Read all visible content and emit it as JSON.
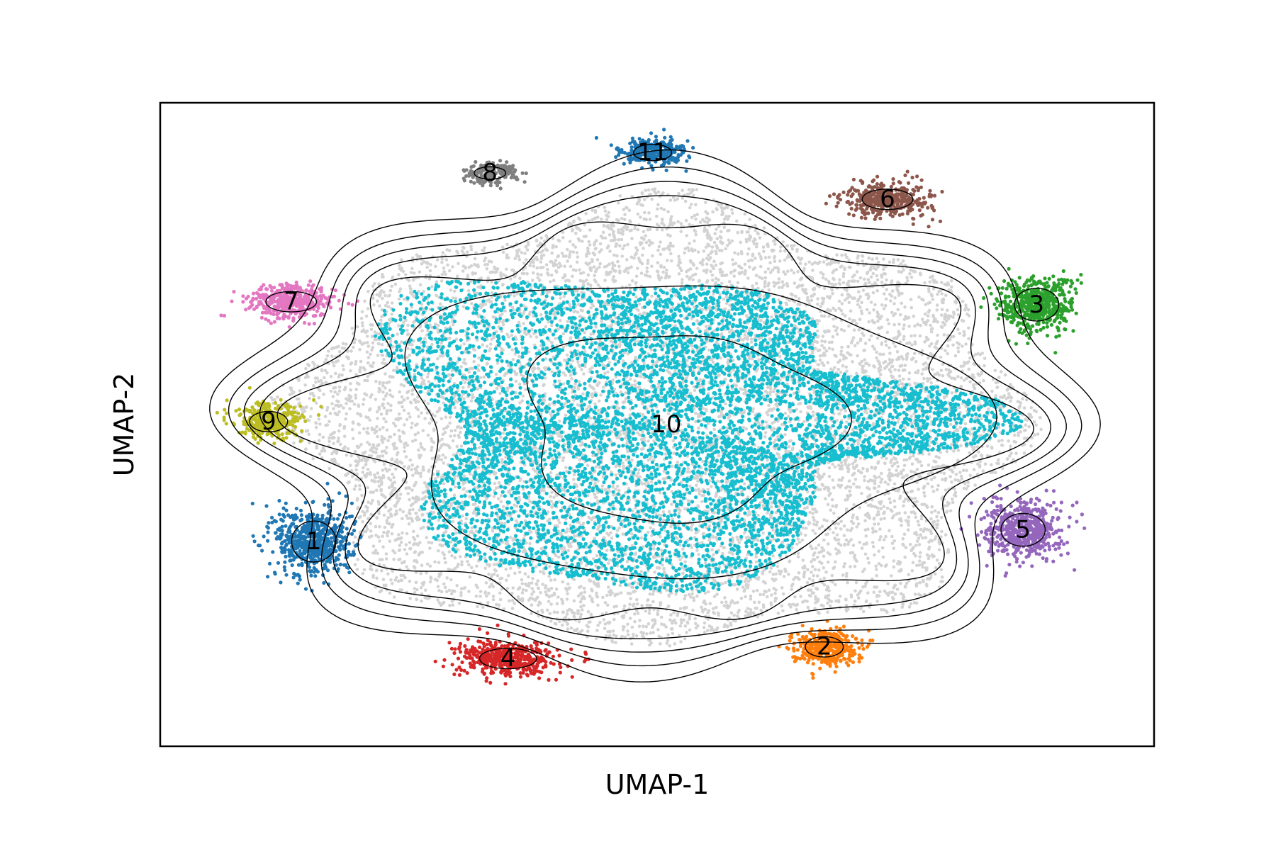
{
  "chart_data": {
    "type": "scatter",
    "title": "",
    "xlabel": "UMAP-1",
    "ylabel": "UMAP-2",
    "xlim": [
      -1.1,
      1.1
    ],
    "ylim": [
      -1.1,
      1.1
    ],
    "ticks_visible": false,
    "grid": false,
    "legend": "none",
    "background_color": "#d3d3d3",
    "contour_color": "#000000",
    "clusters": [
      {
        "label": "1",
        "color": "#1f77b4",
        "center": [
          -0.76,
          -0.4
        ],
        "spread": [
          0.07,
          0.1
        ],
        "points": 620
      },
      {
        "label": "2",
        "color": "#ff7f0e",
        "center": [
          0.37,
          -0.76
        ],
        "spread": [
          0.06,
          0.05
        ],
        "points": 360
      },
      {
        "label": "3",
        "color": "#2ca02c",
        "center": [
          0.84,
          0.41
        ],
        "spread": [
          0.07,
          0.08
        ],
        "points": 520
      },
      {
        "label": "4",
        "color": "#d62728",
        "center": [
          -0.33,
          -0.8
        ],
        "spread": [
          0.09,
          0.05
        ],
        "points": 480
      },
      {
        "label": "5",
        "color": "#9467bd",
        "center": [
          0.81,
          -0.36
        ],
        "spread": [
          0.07,
          0.08
        ],
        "points": 560
      },
      {
        "label": "6",
        "color": "#8c564b",
        "center": [
          0.51,
          0.77
        ],
        "spread": [
          0.08,
          0.05
        ],
        "points": 400
      },
      {
        "label": "7",
        "color": "#e377c2",
        "center": [
          -0.81,
          0.42
        ],
        "spread": [
          0.08,
          0.05
        ],
        "points": 420
      },
      {
        "label": "8",
        "color": "#7f7f7f",
        "center": [
          -0.37,
          0.86
        ],
        "spread": [
          0.05,
          0.03
        ],
        "points": 180
      },
      {
        "label": "9",
        "color": "#bcbd22",
        "center": [
          -0.86,
          0.01
        ],
        "spread": [
          0.06,
          0.05
        ],
        "points": 330
      },
      {
        "label": "10",
        "color": "#17becf",
        "center": [
          0.02,
          0.0
        ],
        "spread": [
          0.3,
          0.28
        ],
        "points": 7000
      },
      {
        "label": "11",
        "color": "#1f77b4",
        "center": [
          -0.01,
          0.93
        ],
        "spread": [
          0.06,
          0.04
        ],
        "points": 300
      }
    ],
    "background_points": 9000
  }
}
